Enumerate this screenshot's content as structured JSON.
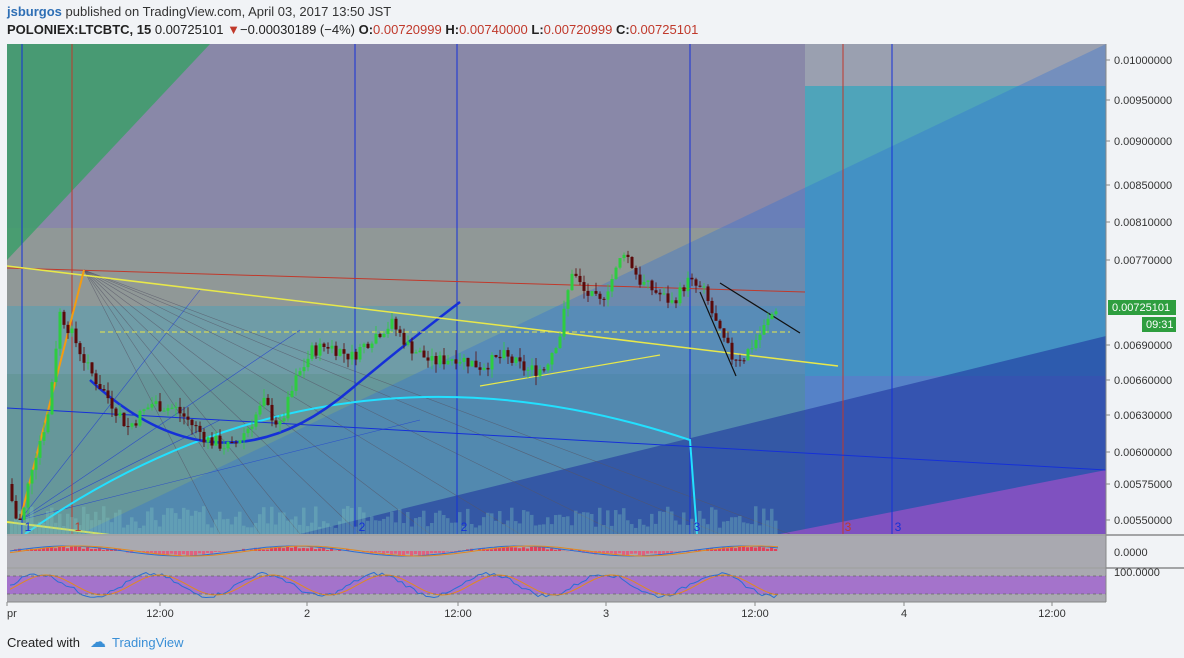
{
  "header": {
    "author": "jsburgos",
    "published_text": "published on TradingView.com, April 03, 2017 13:50 JST"
  },
  "legend": {
    "symbol": "POLONIEX:LTCBTC, 15",
    "last": "0.00725101",
    "change": "−0.00030189 (−4%)",
    "o_label": "O:",
    "o_value": "0.00720999",
    "h_label": "H:",
    "h_value": "0.00740000",
    "l_label": "L:",
    "l_value": "0.00720999",
    "c_label": "C:",
    "c_value": "0.00725101"
  },
  "footer": {
    "created_with": "Created with",
    "brand": "TradingView"
  },
  "colors": {
    "up": "#2ecc40",
    "down": "#5a0a0a",
    "price_badge": "#2e9e3f",
    "cyan_arc": "#22e0ff",
    "blue_arc": "#1530d8",
    "trend": "#e8e84a"
  },
  "chart_data": {
    "type": "candlestick",
    "price_axis": {
      "ticks": [
        "0.01000000",
        "0.00950000",
        "0.00900000",
        "0.00850000",
        "0.00810000",
        "0.00770000",
        "0.00690000",
        "0.00660000",
        "0.00630000",
        "0.00600000",
        "0.00575000",
        "0.00550000"
      ],
      "last_price": "0.00725101",
      "countdown": "09:31"
    },
    "time_axis": {
      "ticks": [
        "pr",
        "12:00",
        "2",
        "12:00",
        "3",
        "12:00",
        "4",
        "12:00"
      ]
    },
    "macd_axis": {
      "value": "0.0000"
    },
    "stoch_axis": {
      "value": "100.0000"
    },
    "cycle_markers": [
      {
        "label": "1",
        "color": "red"
      },
      {
        "label": "1",
        "color": "blue"
      },
      {
        "label": "2",
        "color": "blue"
      },
      {
        "label": "2",
        "color": "blue"
      },
      {
        "label": "3",
        "color": "blue"
      },
      {
        "label": "3",
        "color": "red"
      },
      {
        "label": "3",
        "color": "blue"
      }
    ],
    "path": [
      [
        0,
        0.00575
      ],
      [
        3,
        0.0054
      ],
      [
        6,
        0.0059
      ],
      [
        10,
        0.0063
      ],
      [
        13,
        0.0072
      ],
      [
        16,
        0.007
      ],
      [
        20,
        0.0067
      ],
      [
        26,
        0.0064
      ],
      [
        30,
        0.0062
      ],
      [
        36,
        0.0064
      ],
      [
        42,
        0.00635
      ],
      [
        50,
        0.0061
      ],
      [
        56,
        0.00603
      ],
      [
        60,
        0.0062
      ],
      [
        64,
        0.0064
      ],
      [
        68,
        0.0062
      ],
      [
        72,
        0.0066
      ],
      [
        76,
        0.00685
      ],
      [
        80,
        0.0069
      ],
      [
        86,
        0.0068
      ],
      [
        92,
        0.007
      ],
      [
        96,
        0.0071
      ],
      [
        100,
        0.0069
      ],
      [
        106,
        0.00675
      ],
      [
        112,
        0.0068
      ],
      [
        118,
        0.00672
      ],
      [
        124,
        0.0068
      ],
      [
        130,
        0.00668
      ],
      [
        134,
        0.0067
      ],
      [
        138,
        0.007
      ],
      [
        141,
        0.0076
      ],
      [
        144,
        0.0074
      ],
      [
        148,
        0.0073
      ],
      [
        152,
        0.0076
      ],
      [
        154,
        0.0078
      ],
      [
        158,
        0.0075
      ],
      [
        162,
        0.0074
      ],
      [
        166,
        0.0073
      ],
      [
        170,
        0.0075
      ],
      [
        174,
        0.0074
      ],
      [
        178,
        0.007
      ],
      [
        181,
        0.0068
      ],
      [
        184,
        0.0068
      ],
      [
        188,
        0.007
      ],
      [
        192,
        0.00725
      ]
    ]
  }
}
